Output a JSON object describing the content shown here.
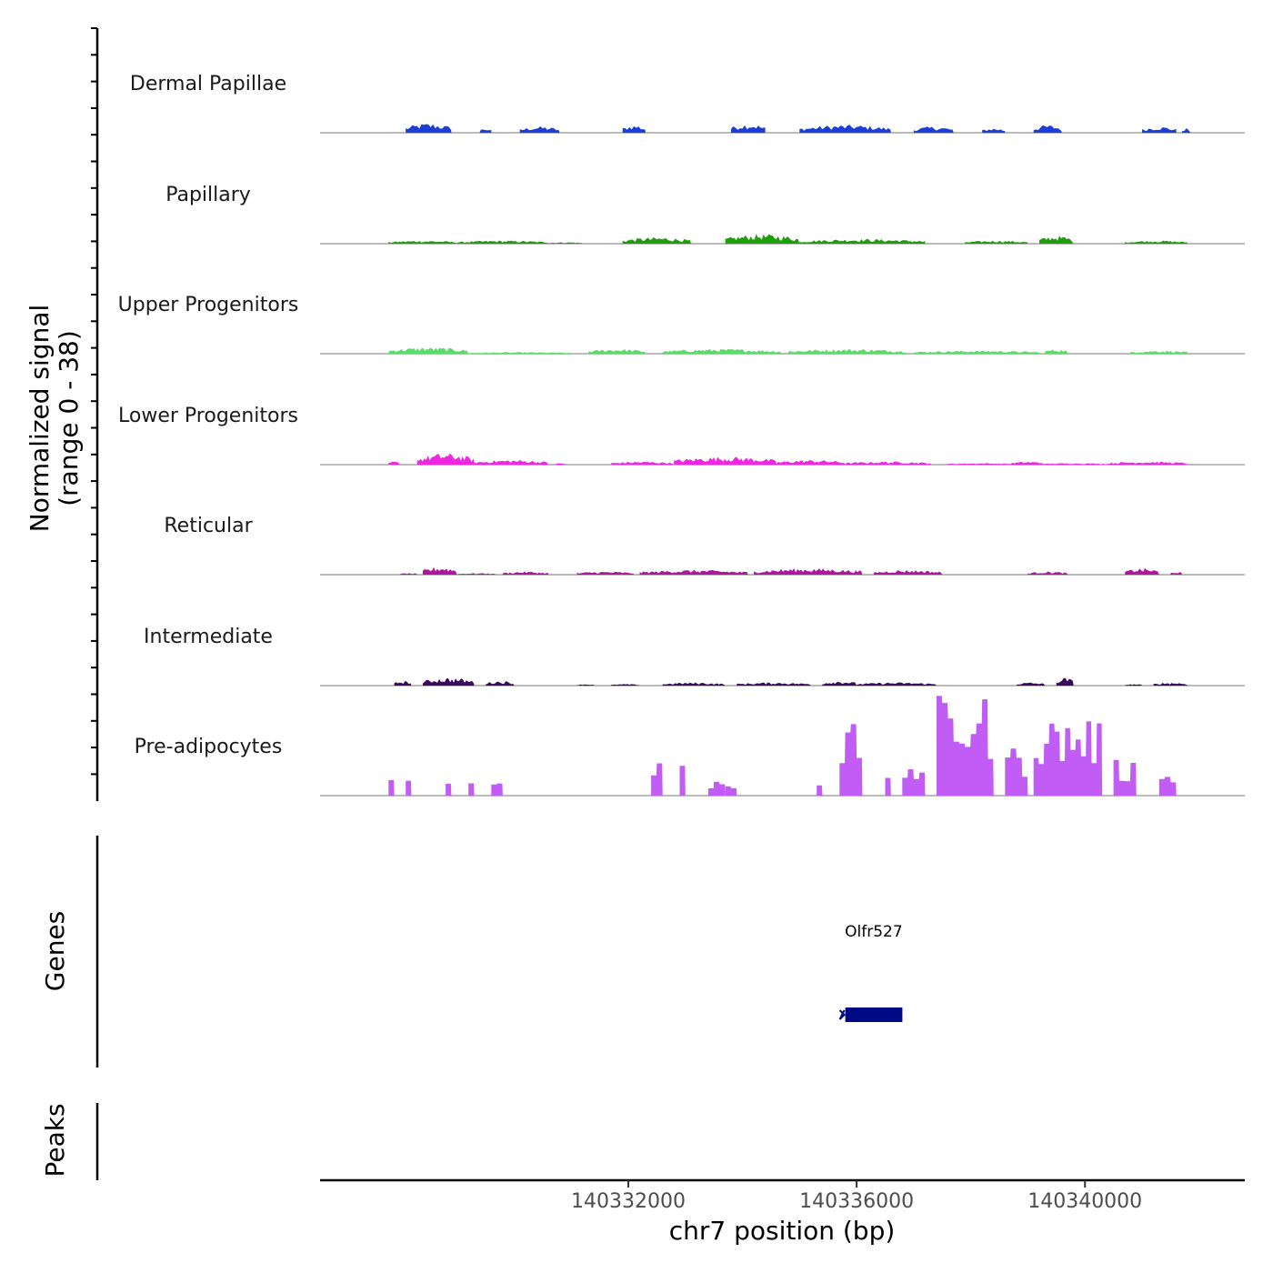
{
  "chart_data": {
    "type": "area",
    "chromosome": "chr7",
    "xlabel": "chr7 position (bp)",
    "xlim": [
      140326600,
      140342800
    ],
    "xticks": [
      {
        "value": 140332000,
        "label": "140332000"
      },
      {
        "value": 140336000,
        "label": "140336000"
      },
      {
        "value": 140340000,
        "label": "140340000"
      }
    ],
    "ylabel_line1": "Normalized signal",
    "ylabel_line2": "(range 0 - 38)",
    "ylim": [
      0,
      38
    ],
    "series": [
      {
        "name": "Dermal Papillae",
        "color": "#1b3fd6",
        "style": "spiky",
        "regions": [
          [
            140328100,
            140328900,
            6
          ],
          [
            140329400,
            140329600,
            3
          ],
          [
            140330100,
            140330800,
            4
          ],
          [
            140331900,
            140332300,
            5
          ],
          [
            140333800,
            140334400,
            6
          ],
          [
            140335000,
            140336600,
            5
          ],
          [
            140337000,
            140337700,
            4
          ],
          [
            140338200,
            140338600,
            3
          ],
          [
            140339100,
            140339600,
            5
          ],
          [
            140341000,
            140341600,
            4
          ],
          [
            140341700,
            140341850,
            3
          ]
        ]
      },
      {
        "name": "Papillary",
        "color": "#1f9e0c",
        "style": "smooth",
        "regions": [
          [
            140327800,
            140329000,
            2
          ],
          [
            140329000,
            140330600,
            2
          ],
          [
            140330600,
            140331200,
            1
          ],
          [
            140331900,
            140333100,
            4
          ],
          [
            140333700,
            140335000,
            6
          ],
          [
            140335000,
            140337200,
            3
          ],
          [
            140337900,
            140339000,
            2
          ],
          [
            140339200,
            140339800,
            5
          ],
          [
            140340700,
            140341800,
            2
          ]
        ]
      },
      {
        "name": "Upper Progenitors",
        "color": "#5ddb6a",
        "style": "smooth",
        "regions": [
          [
            140327800,
            140329200,
            4
          ],
          [
            140329200,
            140331000,
            1
          ],
          [
            140331300,
            140332300,
            3
          ],
          [
            140332600,
            140334700,
            3
          ],
          [
            140334800,
            140336900,
            3
          ],
          [
            140337000,
            140339200,
            2
          ],
          [
            140339300,
            140339700,
            3
          ],
          [
            140340800,
            140341800,
            2
          ]
        ]
      },
      {
        "name": "Lower Progenitors",
        "color": "#ef27e0",
        "style": "smooth",
        "regions": [
          [
            140327800,
            140328000,
            2
          ],
          [
            140328300,
            140329300,
            7
          ],
          [
            140329300,
            140330600,
            3
          ],
          [
            140330700,
            140330900,
            1
          ],
          [
            140331700,
            140332800,
            2
          ],
          [
            140332800,
            140334600,
            5
          ],
          [
            140334600,
            140335800,
            3
          ],
          [
            140335800,
            140337300,
            2
          ],
          [
            140337600,
            140338700,
            1
          ],
          [
            140338700,
            140339300,
            2
          ],
          [
            140339300,
            140340400,
            1
          ],
          [
            140340400,
            140341800,
            2
          ]
        ]
      },
      {
        "name": "Reticular",
        "color": "#b015a2",
        "style": "smooth",
        "regions": [
          [
            140328000,
            140328300,
            1
          ],
          [
            140328400,
            140329000,
            5
          ],
          [
            140329000,
            140329700,
            1
          ],
          [
            140329800,
            140330600,
            2
          ],
          [
            140331100,
            140332100,
            2
          ],
          [
            140332200,
            140334100,
            3
          ],
          [
            140334200,
            140336100,
            4
          ],
          [
            140336300,
            140337500,
            3
          ],
          [
            140339000,
            140339700,
            2
          ],
          [
            140340700,
            140341300,
            4
          ],
          [
            140341500,
            140341700,
            2
          ]
        ]
      },
      {
        "name": "Intermediate",
        "color": "#3a0a5e",
        "style": "smooth",
        "regions": [
          [
            140327900,
            140328200,
            3
          ],
          [
            140328400,
            140329300,
            5
          ],
          [
            140329500,
            140330000,
            3
          ],
          [
            140331100,
            140331400,
            1
          ],
          [
            140331700,
            140332200,
            1
          ],
          [
            140332600,
            140333700,
            2
          ],
          [
            140333900,
            140335200,
            2
          ],
          [
            140335400,
            140336000,
            3
          ],
          [
            140336000,
            140337400,
            2
          ],
          [
            140338800,
            140339300,
            2
          ],
          [
            140339500,
            140339800,
            5
          ],
          [
            140340700,
            140341000,
            1
          ],
          [
            140341200,
            140341800,
            2
          ]
        ]
      },
      {
        "name": "Pre-adipocytes",
        "color": "#c15cf4",
        "style": "blocky",
        "regions": [
          [
            140327800,
            140327900,
            18
          ],
          [
            140328100,
            140328200,
            9
          ],
          [
            140328800,
            140328900,
            9
          ],
          [
            140329200,
            140329300,
            9
          ],
          [
            140329600,
            140329800,
            9
          ],
          [
            140332400,
            140332600,
            18
          ],
          [
            140332900,
            140333000,
            18
          ],
          [
            140333400,
            140333700,
            9
          ],
          [
            140333700,
            140333900,
            9
          ],
          [
            140335300,
            140335400,
            9
          ],
          [
            140335700,
            140336100,
            36
          ],
          [
            140336500,
            140336600,
            9
          ],
          [
            140336800,
            140337200,
            18
          ],
          [
            140337400,
            140338400,
            50
          ],
          [
            140338600,
            140339000,
            25
          ],
          [
            140339100,
            140340300,
            40
          ],
          [
            140340500,
            140340900,
            18
          ],
          [
            140341300,
            140341600,
            18
          ]
        ]
      }
    ],
    "genes": [
      {
        "name": "Olfr527",
        "start": 140335800,
        "end": 140336800,
        "strand": "-",
        "color": "#000a85"
      }
    ],
    "panel_titles": {
      "genes": "Genes",
      "peaks": "Peaks"
    }
  }
}
